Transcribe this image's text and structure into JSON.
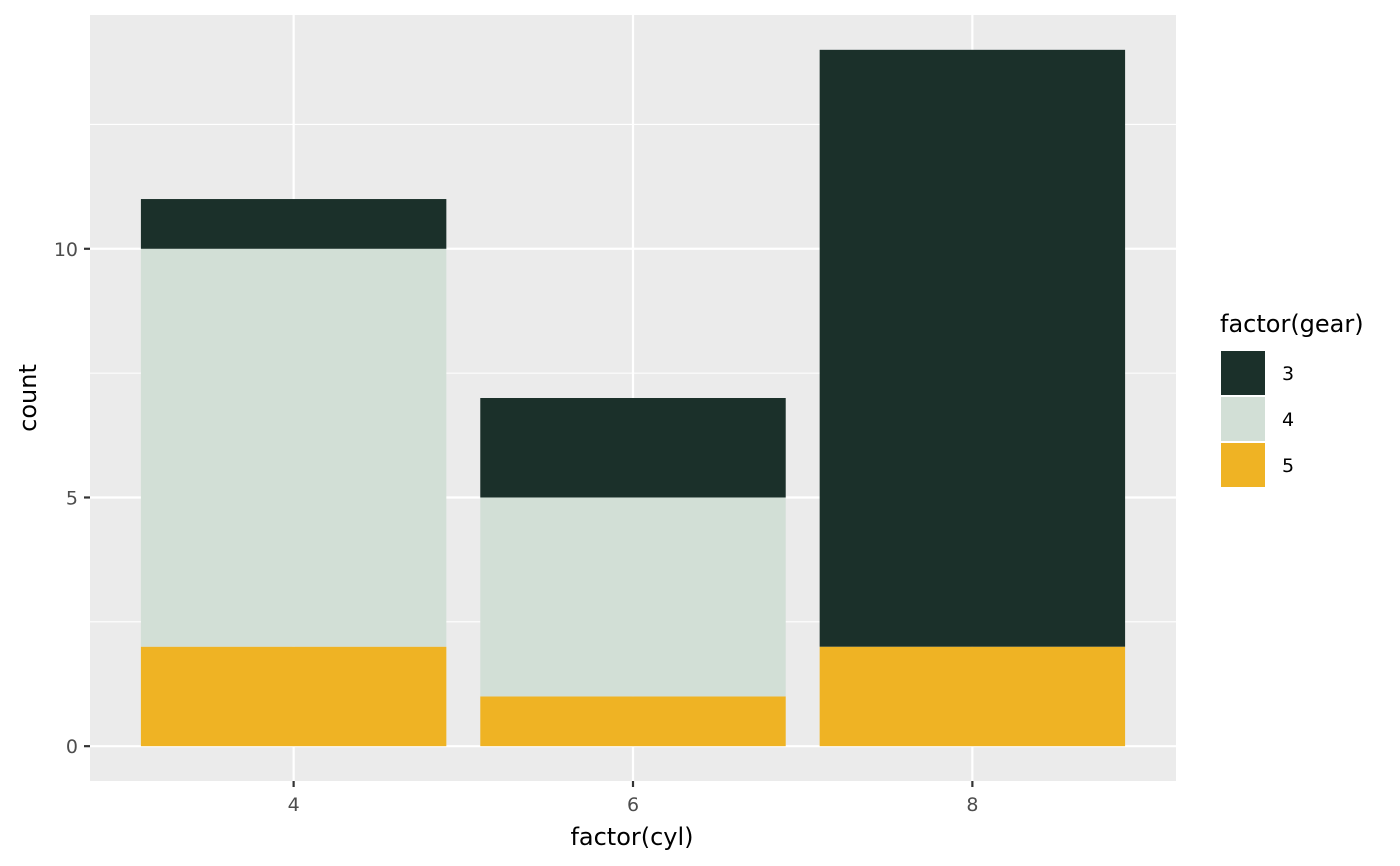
{
  "chart_data": {
    "type": "bar",
    "stacked": true,
    "title": "",
    "xlabel": "factor(cyl)",
    "ylabel": "count",
    "categories": [
      "4",
      "6",
      "8"
    ],
    "series": [
      {
        "name": "3",
        "values": [
          1,
          2,
          12
        ]
      },
      {
        "name": "4",
        "values": [
          8,
          4,
          0
        ]
      },
      {
        "name": "5",
        "values": [
          2,
          1,
          2
        ]
      }
    ],
    "stack_order_bottom_to_top": [
      "5",
      "4",
      "3"
    ],
    "ylim": [
      -0.7,
      14.7
    ],
    "yticks": [
      0,
      5,
      10
    ],
    "ytick_labels": [
      "0",
      "5",
      "10"
    ],
    "grid": true,
    "legend": {
      "title": "factor(gear)",
      "position": "right",
      "entries": [
        "3",
        "4",
        "5"
      ]
    },
    "colors": {
      "3": "#1B302A",
      "4": "#D2DFD6",
      "5": "#EFB324"
    },
    "panel_background": "#EBEBEB",
    "grid_color": "#FFFFFF"
  }
}
